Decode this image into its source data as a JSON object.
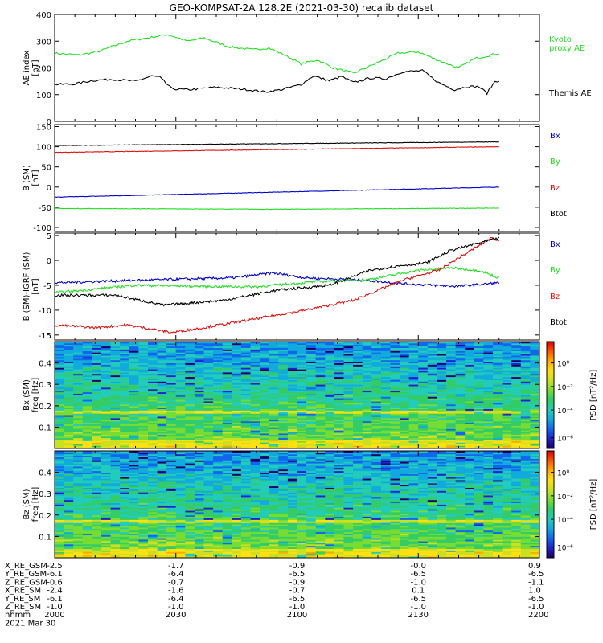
{
  "title": "GEO-KOMPSAT-2A 128.2E (2021-03-30) recalib dataset",
  "colors": {
    "blue": "#0000cc",
    "green": "#22dd22",
    "red": "#dd1111",
    "black": "#000000"
  },
  "chart_data": [
    {
      "type": "line",
      "ylabel": [
        "AE index",
        "[nT]"
      ],
      "ylim": [
        0,
        400
      ],
      "yticks": [
        0,
        100,
        200,
        300,
        400
      ],
      "series": [
        {
          "name": "Kyoto proxy AE",
          "label_lines": [
            "Kyoto",
            "proxy AE"
          ],
          "color": "green",
          "points": [
            [
              0,
              255
            ],
            [
              6,
              248
            ],
            [
              11,
              262
            ],
            [
              18,
              300
            ],
            [
              24,
              315
            ],
            [
              28,
              325
            ],
            [
              33,
              300
            ],
            [
              37,
              312
            ],
            [
              43,
              280
            ],
            [
              49,
              268
            ],
            [
              53,
              275
            ],
            [
              57,
              248
            ],
            [
              61,
              215
            ],
            [
              65,
              230
            ],
            [
              69,
              200
            ],
            [
              74,
              180
            ],
            [
              80,
              220
            ],
            [
              85,
              255
            ],
            [
              90,
              260
            ],
            [
              95,
              228
            ],
            [
              100,
              200
            ],
            [
              104,
              235
            ],
            [
              110,
              255
            ]
          ]
        },
        {
          "name": "Themis AE",
          "label_lines": [
            "Themis AE"
          ],
          "color": "black",
          "points": [
            [
              0,
              138
            ],
            [
              5,
              140
            ],
            [
              9,
              152
            ],
            [
              14,
              158
            ],
            [
              20,
              150
            ],
            [
              24,
              170
            ],
            [
              26,
              165
            ],
            [
              29,
              122
            ],
            [
              33,
              118
            ],
            [
              40,
              128
            ],
            [
              47,
              120
            ],
            [
              52,
              110
            ],
            [
              56,
              118
            ],
            [
              61,
              138
            ],
            [
              64,
              170
            ],
            [
              68,
              152
            ],
            [
              71,
              168
            ],
            [
              74,
              145
            ],
            [
              78,
              162
            ],
            [
              82,
              160
            ],
            [
              86,
              185
            ],
            [
              91,
              190
            ],
            [
              95,
              145
            ],
            [
              99,
              118
            ],
            [
              102,
              130
            ],
            [
              105,
              130
            ],
            [
              107,
              105
            ],
            [
              109,
              150
            ],
            [
              110,
              152
            ]
          ]
        }
      ]
    },
    {
      "type": "line",
      "ylabel": [
        "B (SM)",
        "[nT]"
      ],
      "ylim": [
        -110,
        155
      ],
      "yticks": [
        -100,
        -50,
        0,
        50,
        100,
        150
      ],
      "series": [
        {
          "name": "Bx",
          "color": "blue",
          "points": [
            [
              0,
              -25
            ],
            [
              110,
              0
            ]
          ]
        },
        {
          "name": "By",
          "color": "green",
          "points": [
            [
              0,
              -53
            ],
            [
              55,
              -55
            ],
            [
              110,
              -52
            ]
          ]
        },
        {
          "name": "Bz",
          "color": "red",
          "points": [
            [
              0,
              86
            ],
            [
              110,
              100
            ]
          ]
        },
        {
          "name": "Btot",
          "color": "black",
          "points": [
            [
              0,
              103
            ],
            [
              110,
              112
            ]
          ]
        }
      ]
    },
    {
      "type": "line",
      "ylabel": [
        "B (SM)-IGRF (SM)",
        "[nT]"
      ],
      "ylim": [
        -16,
        5.5
      ],
      "yticks": [
        -15,
        -10,
        -5,
        0,
        5
      ],
      "series": [
        {
          "name": "Bx",
          "color": "blue",
          "points": [
            [
              0,
              -4.5
            ],
            [
              20,
              -4.0
            ],
            [
              44,
              -3.5
            ],
            [
              54,
              -2.5
            ],
            [
              62,
              -3.5
            ],
            [
              77,
              -4.0
            ],
            [
              88,
              -4.8
            ],
            [
              100,
              -5.2
            ],
            [
              110,
              -4.5
            ]
          ]
        },
        {
          "name": "By",
          "color": "green",
          "points": [
            [
              0,
              -6.5
            ],
            [
              20,
              -5
            ],
            [
              36,
              -5.2
            ],
            [
              50,
              -5.3
            ],
            [
              64,
              -4.3
            ],
            [
              78,
              -3.8
            ],
            [
              90,
              -2
            ],
            [
              98,
              -1.5
            ],
            [
              105,
              -2
            ],
            [
              110,
              -3.5
            ]
          ]
        },
        {
          "name": "Bz",
          "color": "red",
          "points": [
            [
              0,
              -13
            ],
            [
              10,
              -13.5
            ],
            [
              18,
              -13
            ],
            [
              29,
              -14.5
            ],
            [
              37,
              -13.5
            ],
            [
              48,
              -12
            ],
            [
              62,
              -10
            ],
            [
              74,
              -8
            ],
            [
              86,
              -4
            ],
            [
              95,
              -2
            ],
            [
              103,
              2
            ],
            [
              108,
              4.5
            ],
            [
              110,
              4
            ]
          ]
        },
        {
          "name": "Btot",
          "color": "black",
          "points": [
            [
              0,
              -7
            ],
            [
              15,
              -7
            ],
            [
              27,
              -9
            ],
            [
              42,
              -8
            ],
            [
              55,
              -6
            ],
            [
              68,
              -5
            ],
            [
              78,
              -2
            ],
            [
              86,
              -1
            ],
            [
              92,
              -0.5
            ],
            [
              98,
              2
            ],
            [
              105,
              3.5
            ],
            [
              110,
              4.5
            ]
          ]
        }
      ]
    },
    {
      "type": "heatmap",
      "ylabel": [
        "Bx (SM)",
        "freq [Hz]"
      ],
      "ylim": [
        0,
        0.5
      ],
      "yticks": [
        0.1,
        0.2,
        0.3,
        0.4
      ],
      "colorbar_label": "PSD [nT²/Hz]",
      "colorbar_ticks": [
        "10⁰",
        "10⁻²",
        "10⁻⁴",
        "10⁻⁶"
      ]
    },
    {
      "type": "heatmap",
      "ylabel": [
        "Bz (SM)",
        "freq [Hz]"
      ],
      "ylim": [
        0,
        0.5
      ],
      "yticks": [
        0.1,
        0.2,
        0.3,
        0.4
      ],
      "colorbar_label": "PSD [nT²/Hz]",
      "colorbar_ticks": [
        "10⁰",
        "10⁻²",
        "10⁻⁴",
        "10⁻⁶"
      ]
    }
  ],
  "axis_table": {
    "rows": [
      {
        "label": "X_RE_GSM",
        "values": [
          "-2.5",
          "-1.7",
          "-0.9",
          "-0.0",
          "0.9"
        ]
      },
      {
        "label": "Y_RE_GSM",
        "values": [
          "-6.1",
          "-6.4",
          "-6.5",
          "-6.5",
          "-6.5"
        ]
      },
      {
        "label": "Z_RE_GSM",
        "values": [
          "-0.6",
          "-0.7",
          "-0.9",
          "-1.0",
          "-1.1"
        ]
      },
      {
        "label": "X_RE_SM",
        "values": [
          "-2.4",
          "-1.6",
          "-0.7",
          "0.1",
          "1.0"
        ]
      },
      {
        "label": "Y_RE_SM",
        "values": [
          "-6.1",
          "-6.4",
          "-6.5",
          "-6.5",
          "-6.5"
        ]
      },
      {
        "label": "Z_RE_SM",
        "values": [
          "-1.0",
          "-1.0",
          "-1.0",
          "-1.0",
          "-1.0"
        ]
      },
      {
        "label": "hhmm",
        "values": [
          "2000",
          "2030",
          "2100",
          "2130",
          "2200"
        ]
      }
    ],
    "date": "2021 Mar 30"
  }
}
